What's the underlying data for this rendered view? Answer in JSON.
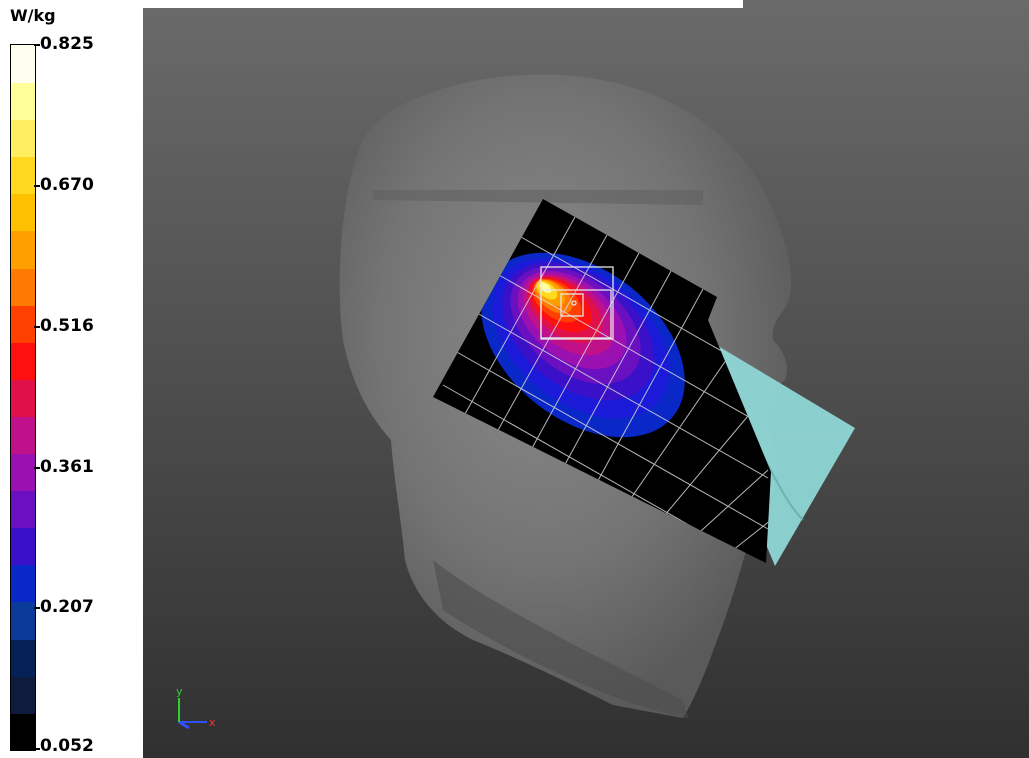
{
  "legend": {
    "unit": "W/kg",
    "ticks": [
      "0.825",
      "0.670",
      "0.516",
      "0.361",
      "0.207",
      "0.052"
    ],
    "colors": [
      "#000000",
      "#0e1b3c",
      "#062158",
      "#0a3a9a",
      "#0a28c8",
      "#3a10c8",
      "#6a10c0",
      "#9a10b0",
      "#c0108a",
      "#e0104a",
      "#ff1010",
      "#ff4000",
      "#ff7a00",
      "#ffa000",
      "#ffc000",
      "#ffd820",
      "#ffee60",
      "#ffff9a",
      "#fffff0"
    ]
  },
  "axes": {
    "x": "x",
    "y": "y",
    "x_color": "#ff3030",
    "y_color": "#30d030",
    "z_color": "#3050ff"
  },
  "colors": {
    "grid_region": "#000000",
    "phone_panel": "#8fd6d6",
    "head": "#7a7a7a"
  }
}
